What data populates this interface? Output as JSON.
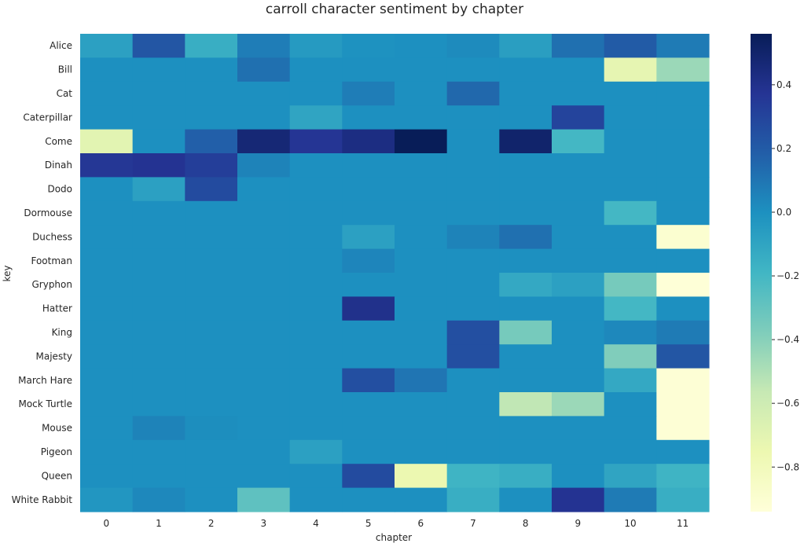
{
  "chart_data": {
    "type": "heatmap",
    "title": "carroll character sentiment by chapter",
    "xlabel": "chapter",
    "ylabel": "key",
    "x": [
      "0",
      "1",
      "2",
      "3",
      "4",
      "5",
      "6",
      "7",
      "8",
      "9",
      "10",
      "11"
    ],
    "y": [
      "Alice",
      "Bill",
      "Cat",
      "Caterpillar",
      "Come",
      "Dinah",
      "Dodo",
      "Dormouse",
      "Duchess",
      "Footman",
      "Gryphon",
      "Hatter",
      "King",
      "Majesty",
      "March Hare",
      "Mock Turtle",
      "Mouse",
      "Pigeon",
      "Queen",
      "White Rabbit"
    ],
    "values": [
      [
        -0.08,
        0.22,
        -0.15,
        0.07,
        -0.05,
        -0.01,
        0.0,
        0.02,
        -0.07,
        0.12,
        0.2,
        0.08
      ],
      [
        0,
        0,
        0,
        0.12,
        0,
        0,
        0,
        0,
        0,
        0,
        -0.72,
        -0.45
      ],
      [
        0,
        0,
        0,
        0,
        0,
        0.07,
        0,
        0.15,
        0,
        0,
        0,
        0
      ],
      [
        0,
        0,
        0,
        0,
        -0.1,
        0,
        0,
        0,
        0,
        0.3,
        0,
        0
      ],
      [
        -0.7,
        0,
        0.18,
        0.47,
        0.37,
        0.43,
        0.56,
        0,
        0.5,
        -0.2,
        0,
        0
      ],
      [
        0.36,
        0.38,
        0.33,
        0.05,
        0,
        0,
        0,
        0,
        0,
        0,
        0,
        0
      ],
      [
        0,
        -0.08,
        0.27,
        0,
        0,
        0,
        0,
        0,
        0,
        0,
        0,
        0
      ],
      [
        0,
        0,
        0,
        0,
        0,
        0,
        0,
        0,
        0,
        0,
        -0.2,
        0
      ],
      [
        0,
        0,
        0,
        0,
        0,
        -0.08,
        0,
        0.05,
        0.12,
        0,
        0,
        -0.9
      ],
      [
        0,
        0,
        0,
        0,
        0,
        0.04,
        0,
        0,
        0,
        0,
        0,
        0
      ],
      [
        0,
        0,
        0,
        0,
        0,
        0,
        0,
        0,
        -0.12,
        -0.08,
        -0.35,
        -0.93
      ],
      [
        0,
        0,
        0,
        0,
        0,
        0.4,
        0,
        0,
        0,
        0,
        -0.2,
        0
      ],
      [
        0,
        0,
        0,
        0,
        0,
        0,
        0,
        0.25,
        -0.35,
        0,
        0.03,
        0.08
      ],
      [
        0,
        0,
        0,
        0,
        0,
        0,
        0,
        0.25,
        0,
        0,
        -0.38,
        0.22
      ],
      [
        0,
        0,
        0,
        0,
        0,
        0.25,
        0.1,
        0,
        0,
        0,
        -0.12,
        -0.92
      ],
      [
        0,
        0,
        0,
        0,
        0,
        0,
        0,
        0,
        -0.55,
        -0.45,
        0,
        -0.92
      ],
      [
        0,
        0.05,
        0.01,
        0,
        0,
        0,
        0,
        0,
        0,
        0,
        0,
        -0.92
      ],
      [
        0,
        0,
        0,
        0,
        -0.08,
        0,
        0,
        0,
        0,
        0,
        0,
        0
      ],
      [
        0,
        0,
        0,
        0,
        0,
        0.27,
        -0.75,
        -0.18,
        -0.15,
        0,
        -0.1,
        -0.18
      ],
      [
        -0.03,
        0.03,
        0,
        -0.28,
        0,
        0,
        0,
        -0.15,
        0,
        0.38,
        0.08,
        -0.15
      ]
    ],
    "vmin": -0.94,
    "vmax": 0.56,
    "colorbar_ticks": [
      0.4,
      0.2,
      0.0,
      -0.2,
      -0.4,
      -0.6,
      -0.8
    ],
    "colorbar_tick_labels": [
      "0.4",
      "0.2",
      "0.0",
      "−0.2",
      "−0.4",
      "−0.6",
      "−0.8"
    ],
    "colormap": "YlGnBu",
    "colormap_stops": [
      "#ffffd9",
      "#edf8b1",
      "#c7e9b4",
      "#7fcdbb",
      "#41b6c4",
      "#1d91c0",
      "#225ea8",
      "#253494",
      "#081d58"
    ],
    "grid": false,
    "colorbar_position": "right"
  }
}
